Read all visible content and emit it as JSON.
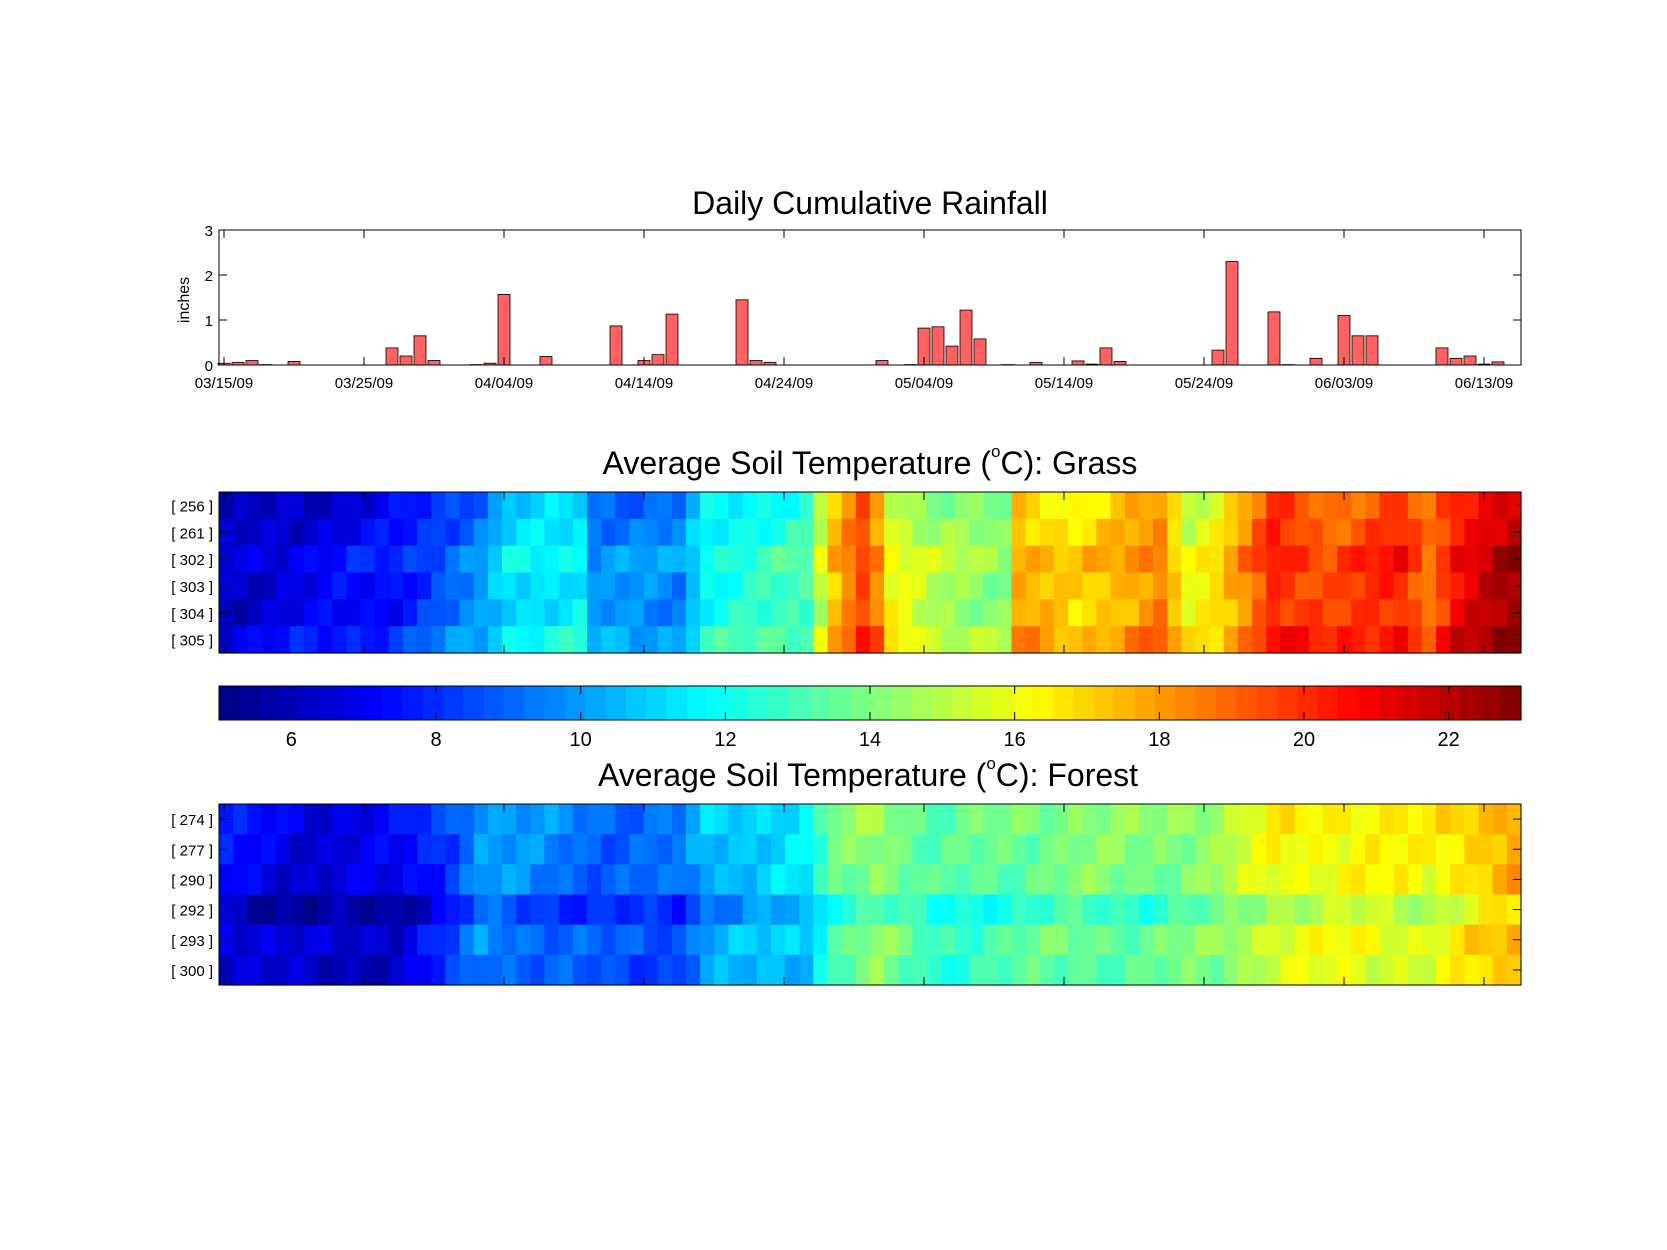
{
  "chart_data": [
    {
      "type": "bar",
      "title": "Daily Cumulative Rainfall",
      "xlabel": "",
      "ylabel": "inches",
      "ylim": [
        0,
        3
      ],
      "yticks": [
        "0",
        "1",
        "2",
        "3"
      ],
      "xtick_labels": [
        "03/15/09",
        "03/25/09",
        "04/04/09",
        "04/14/09",
        "04/24/09",
        "05/04/09",
        "05/14/09",
        "05/24/09",
        "06/03/09",
        "06/13/09"
      ],
      "bar_color": "#ff6060",
      "x_dates": [
        "03/15/09",
        "03/16/09",
        "03/17/09",
        "03/18/09",
        "03/20/09",
        "03/27/09",
        "03/28/09",
        "03/29/09",
        "03/30/09",
        "04/02/09",
        "04/03/09",
        "04/04/09",
        "04/07/09",
        "04/12/09",
        "04/14/09",
        "04/15/09",
        "04/16/09",
        "04/21/09",
        "04/22/09",
        "04/23/09",
        "05/01/09",
        "05/03/09",
        "05/04/09",
        "05/05/09",
        "05/06/09",
        "05/07/09",
        "05/08/09",
        "05/10/09",
        "05/12/09",
        "05/15/09",
        "05/16/09",
        "05/17/09",
        "05/18/09",
        "05/25/09",
        "05/26/09",
        "05/29/09",
        "05/30/09",
        "06/01/09",
        "06/03/09",
        "06/04/09",
        "06/05/09",
        "06/10/09",
        "06/11/09",
        "06/12/09",
        "06/13/09",
        "06/14/09"
      ],
      "values": [
        0.04,
        0.06,
        0.1,
        0.01,
        0.08,
        0.38,
        0.2,
        0.65,
        0.1,
        0.01,
        0.04,
        1.57,
        0.19,
        0.87,
        0.1,
        0.23,
        1.13,
        1.45,
        0.1,
        0.06,
        0.1,
        0.01,
        0.82,
        0.85,
        0.42,
        1.22,
        0.58,
        0.01,
        0.06,
        0.09,
        0.02,
        0.38,
        0.08,
        0.33,
        2.3,
        1.18,
        0.01,
        0.15,
        1.1,
        0.65,
        0.65,
        0.38,
        0.15,
        0.2,
        0.02,
        0.07
      ]
    },
    {
      "type": "heatmap",
      "title": "Average Soil Temperature (°C): Grass",
      "title_main": "Average Soil Temperature (",
      "title_unit": "C): Grass",
      "title_degree": "o",
      "ylabels": [
        "[ 256 ]",
        "[ 261 ]",
        "[ 302 ]",
        "[ 303 ]",
        "[ 304 ]",
        "[ 305 ]"
      ],
      "x_start": "03/15/09",
      "x_end": "06/14/09",
      "profile": [
        [
          0,
          6.0
        ],
        [
          12,
          7.3
        ],
        [
          18,
          9.5
        ],
        [
          20,
          11.0
        ],
        [
          25,
          11.4
        ],
        [
          26,
          9.5
        ],
        [
          32,
          9.4
        ],
        [
          34,
          11.7
        ],
        [
          41,
          12.7
        ],
        [
          43,
          17.2
        ],
        [
          45,
          19.4
        ],
        [
          46,
          18.1
        ],
        [
          47,
          15.8
        ],
        [
          50,
          14.5
        ],
        [
          55,
          14.0
        ],
        [
          56,
          17.5
        ],
        [
          60,
          16.5
        ],
        [
          63,
          17.3
        ],
        [
          66,
          18.3
        ],
        [
          68,
          15.5
        ],
        [
          70,
          16.3
        ],
        [
          72,
          18.0
        ],
        [
          74,
          20.0
        ],
        [
          78,
          19.0
        ],
        [
          83,
          20.0
        ],
        [
          85,
          18.5
        ],
        [
          87,
          20.5
        ],
        [
          90,
          21.8
        ],
        [
          92,
          22.3
        ]
      ],
      "sensor_offsets": [
        -0.3,
        0.0,
        0.6,
        0.2,
        0.2,
        0.9
      ]
    },
    {
      "type": "colorbar",
      "colormap": "jet",
      "clim": [
        5,
        23
      ],
      "ticks": [
        "6",
        "8",
        "10",
        "12",
        "14",
        "16",
        "18",
        "20",
        "22"
      ]
    },
    {
      "type": "heatmap",
      "title": "Average Soil Temperature (°C): Forest",
      "title_main": "Average Soil Temperature (",
      "title_unit": "C): Forest",
      "title_degree": "o",
      "ylabels": [
        "[ 274 ]",
        "[ 277 ]",
        "[ 290 ]",
        "[ 292 ]",
        "[ 293 ]",
        "[ 300 ]"
      ],
      "x_start": "03/15/09",
      "x_end": "06/14/09",
      "profile": [
        [
          0,
          6.8
        ],
        [
          6,
          6.0
        ],
        [
          12,
          6.3
        ],
        [
          16,
          8.0
        ],
        [
          18,
          9.5
        ],
        [
          22,
          9.0
        ],
        [
          27,
          8.4
        ],
        [
          32,
          8.5
        ],
        [
          34,
          10.0
        ],
        [
          41,
          10.8
        ],
        [
          43,
          13.0
        ],
        [
          46,
          14.0
        ],
        [
          50,
          12.5
        ],
        [
          55,
          13.0
        ],
        [
          60,
          13.5
        ],
        [
          65,
          13.3
        ],
        [
          70,
          14.0
        ],
        [
          74,
          15.5
        ],
        [
          80,
          15.8
        ],
        [
          85,
          15.5
        ],
        [
          88,
          16.5
        ],
        [
          90,
          17.0
        ],
        [
          92,
          17.5
        ]
      ],
      "sensor_offsets": [
        0.8,
        0.6,
        0.5,
        -0.6,
        0.3,
        0.0
      ]
    }
  ]
}
